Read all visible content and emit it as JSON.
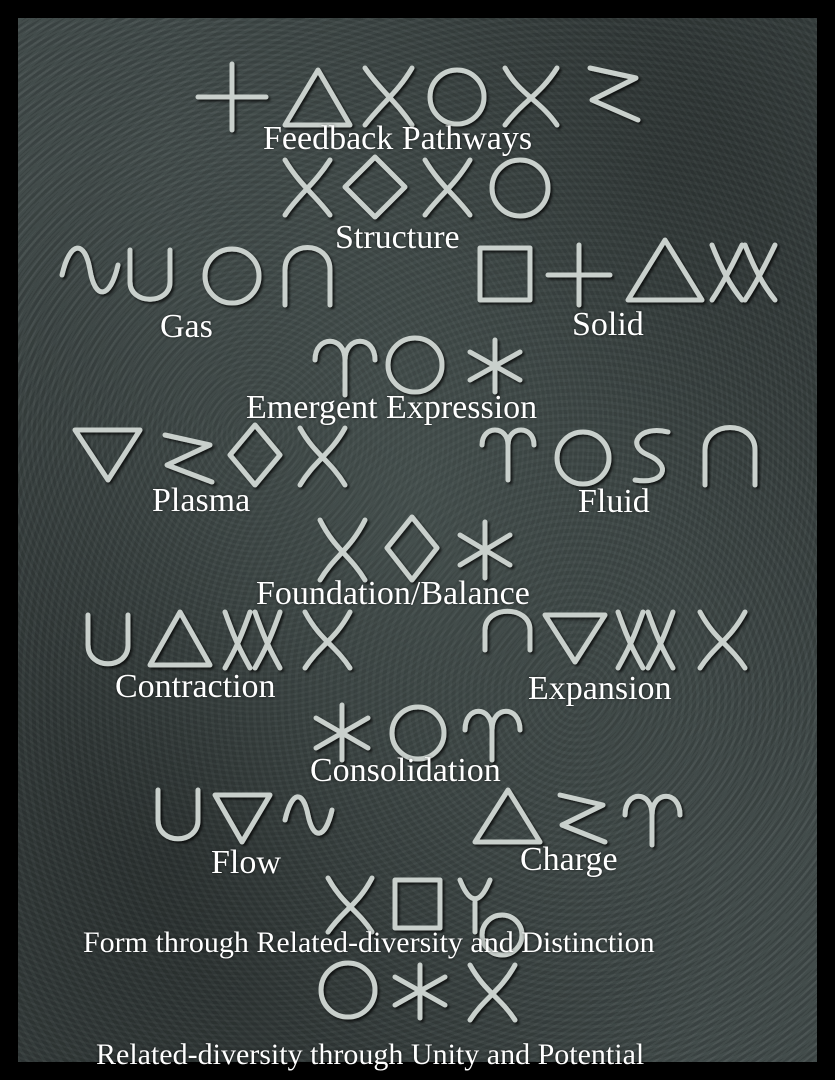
{
  "background": {
    "frame_color": "#000000",
    "stone_color": "#3f4948",
    "glyph_color": "#c9d0cc"
  },
  "labels": {
    "feedback_pathways": "Feedback Pathways",
    "structure": "Structure",
    "gas": "Gas",
    "solid": "Solid",
    "emergent_expression": "Emergent Expression",
    "plasma": "Plasma",
    "fluid": "Fluid",
    "foundation_balance": "Foundation/Balance",
    "contraction": "Contraction",
    "expansion": "Expansion",
    "consolidation": "Consolidation",
    "flow": "Flow",
    "charge": "Charge",
    "form_line": "Form through Related-diversity and Distinction",
    "related_line": "Related-diversity through Unity and Potential"
  }
}
